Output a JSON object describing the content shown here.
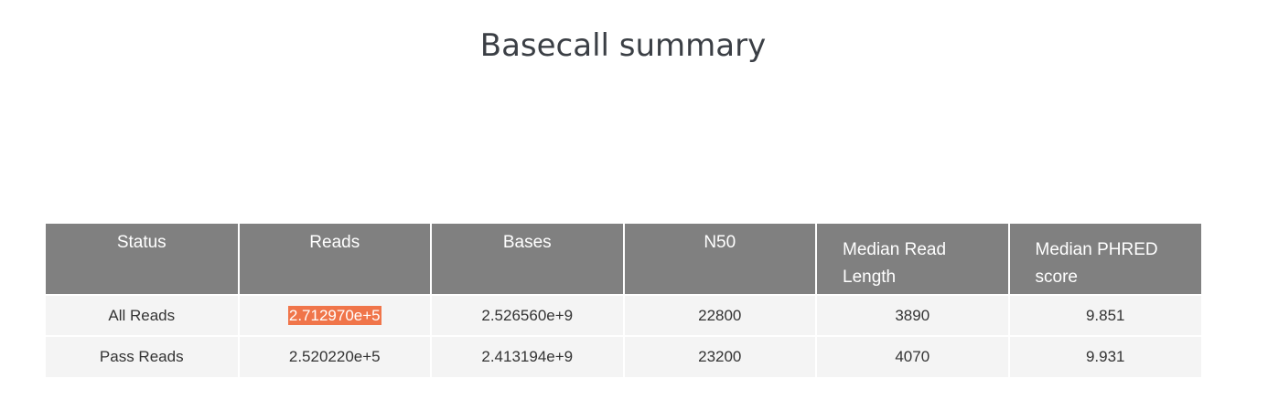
{
  "page": {
    "title": "Basecall summary"
  },
  "table": {
    "headers": [
      "Status",
      "Reads",
      "Bases",
      "N50",
      "Median Read Length",
      "Median PHRED score"
    ],
    "rows": [
      [
        "All Reads",
        "2.712970e+5",
        "2.526560e+9",
        "22800",
        "3890",
        "9.851"
      ],
      [
        "Pass Reads",
        "2.520220e+5",
        "2.413194e+9",
        "23200",
        "4070",
        "9.931"
      ]
    ]
  },
  "colors": {
    "header_bg": "#808080",
    "row_bg": "#f4f4f4",
    "highlight": "#f0754a"
  }
}
